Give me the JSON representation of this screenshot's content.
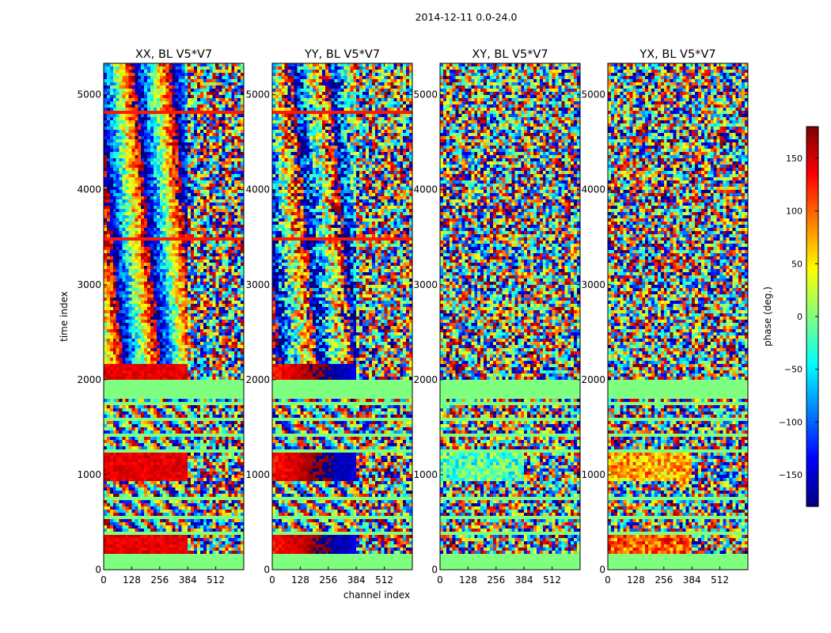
{
  "figure": {
    "suptitle": "2014-12-11 0.0-24.0",
    "colorbar_label": "phase (deg.)"
  },
  "chart_data": {
    "type": "heatmap",
    "title": "2014-12-11 0.0-24.0",
    "xlabel": "channel index",
    "ylabel": "time index",
    "colormap": "jet",
    "xlim": [
      0,
      640
    ],
    "ylim": [
      0,
      5330
    ],
    "x_ticks": [
      "0",
      "128",
      "256",
      "384",
      "512"
    ],
    "y_ticks": [
      "0",
      "1000",
      "2000",
      "3000",
      "4000",
      "5000"
    ],
    "panels": [
      {
        "title": "XX, BL V5*V7",
        "pol": "XX"
      },
      {
        "title": "YY, BL V5*V7",
        "pol": "YY"
      },
      {
        "title": "XY, BL V5*V7",
        "pol": "XY"
      },
      {
        "title": "YX, BL V5*V7",
        "pol": "YX"
      }
    ],
    "colorbar": {
      "label": "phase (deg.)",
      "range": [
        -180,
        180
      ],
      "ticks": [
        "150",
        "100",
        "50",
        "0",
        "−50",
        "−100",
        "−150"
      ],
      "tick_values": [
        150,
        100,
        50,
        0,
        -50,
        -100,
        -150
      ]
    }
  }
}
